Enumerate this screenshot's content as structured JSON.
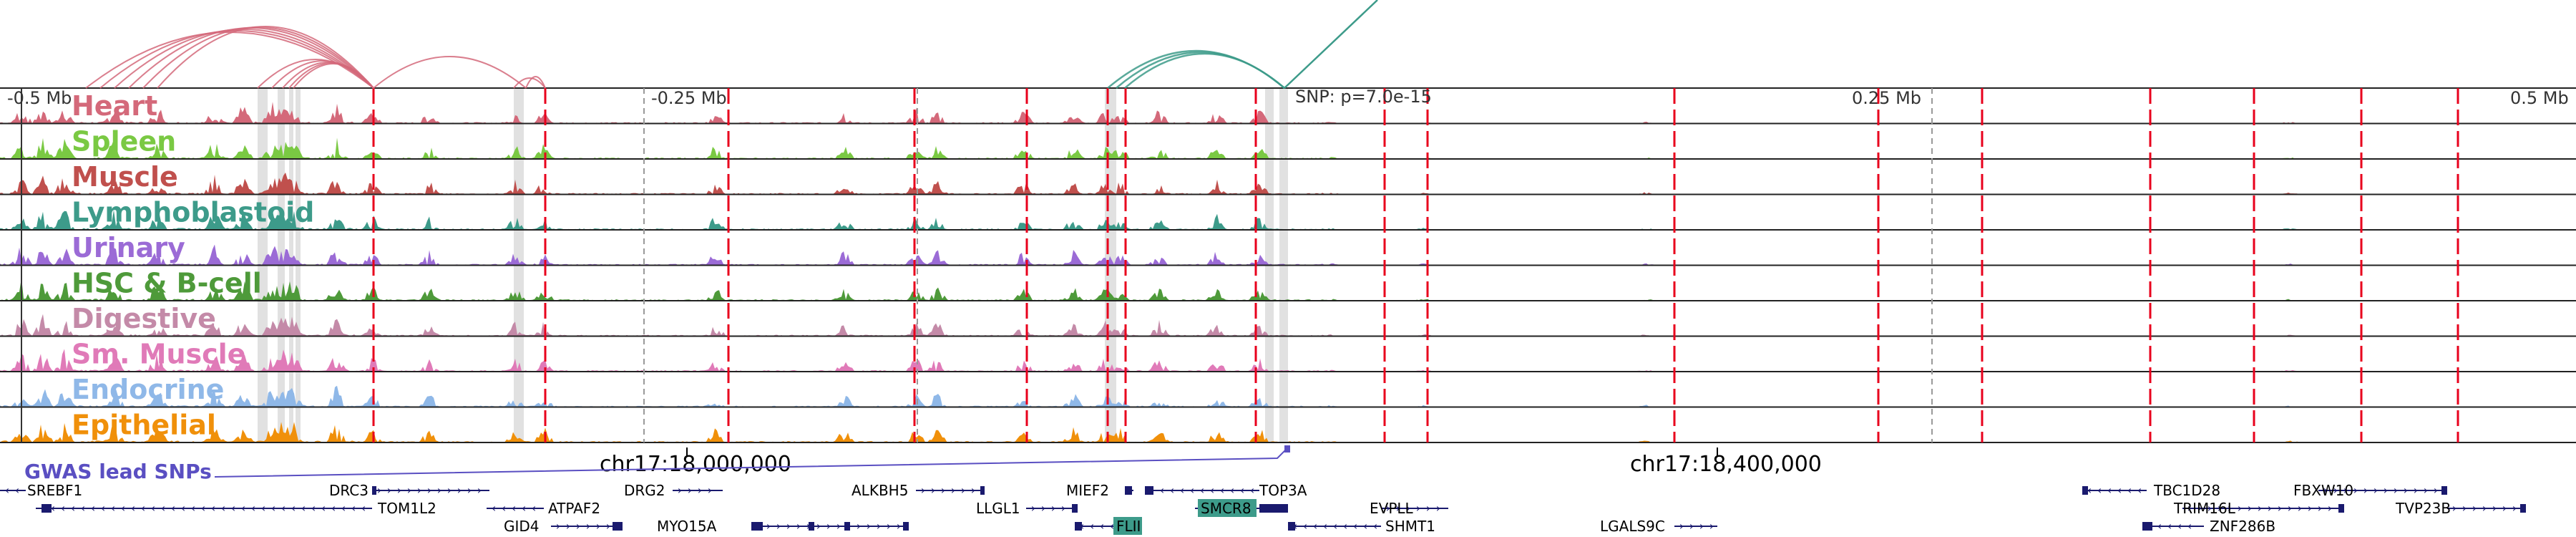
{
  "scale": {
    "left_label": "-0.5 Mb",
    "mid_left_label": "-0.25 Mb",
    "mid_right_label": "0.25 Mb",
    "right_label": "0.5 Mb"
  },
  "snp_annotation": "SNP: p=7.0e-15",
  "tracks": [
    {
      "name": "Heart",
      "color": "#d4697a"
    },
    {
      "name": "Spleen",
      "color": "#7ac943"
    },
    {
      "name": "Muscle",
      "color": "#c0504d"
    },
    {
      "name": "Lymphoblastoid",
      "color": "#3d9b8a"
    },
    {
      "name": "Urinary",
      "color": "#9b6bd6"
    },
    {
      "name": "HSC & B-cell",
      "color": "#4e9a3a"
    },
    {
      "name": "Digestive",
      "color": "#c48aa8"
    },
    {
      "name": "Sm. Muscle",
      "color": "#e07ab8"
    },
    {
      "name": "Endocrine",
      "color": "#8fb8e8"
    },
    {
      "name": "Epithelial",
      "color": "#f0900a"
    }
  ],
  "coordinates": [
    "chr17:18,000,000",
    "chr17:18,400,000"
  ],
  "gwas_label": "GWAS lead SNPs",
  "gwas_color": "#5a4fc2",
  "genes": {
    "row1": [
      "SREBF1",
      "DRC3",
      "DRG2",
      "ALKBH5",
      "MIEF2",
      "TOP3A",
      "TBC1D28",
      "FBXW10"
    ],
    "row2": [
      "TOM1L2",
      "ATPAF2",
      "LLGL1",
      "SMCR8",
      "EVPLL",
      "TRIM16L",
      "TVP23B"
    ],
    "row3": [
      "GID4",
      "MYO15A",
      "FLII",
      "SHMT1",
      "LGALS9C",
      "ZNF286B"
    ]
  },
  "highlight_gene_color": "#3d9b8a",
  "enhancer_link_color": "#d4697a",
  "lcl_link_color": "#3d9b8a",
  "marker_color": "#e8001c"
}
